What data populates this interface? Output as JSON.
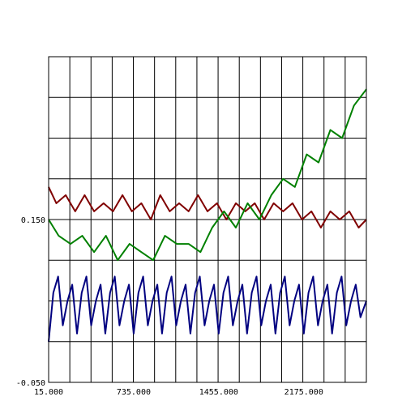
{
  "chart_data": {
    "type": "line",
    "title": "",
    "xlabel": "",
    "ylabel": "",
    "xlim": [
      15,
      2705
    ],
    "ylim": [
      -0.05,
      0.35
    ],
    "x_ticks": [
      15,
      735,
      1455,
      2175
    ],
    "x_tick_labels": [
      "15.000",
      "735.000",
      "1455.000",
      "2175.000"
    ],
    "y_ticks": [
      -0.05,
      0.15
    ],
    "y_tick_labels": [
      "-0.050",
      "0.150"
    ],
    "grid": true,
    "legend": "none",
    "series": [
      {
        "color": "#800000",
        "x": [
          15,
          80,
          160,
          240,
          320,
          400,
          480,
          560,
          640,
          720,
          800,
          880,
          960,
          1040,
          1120,
          1200,
          1280,
          1360,
          1440,
          1520,
          1600,
          1680,
          1760,
          1840,
          1920,
          2000,
          2080,
          2160,
          2240,
          2320,
          2400,
          2480,
          2560,
          2640,
          2705
        ],
        "y": [
          0.19,
          0.17,
          0.18,
          0.16,
          0.18,
          0.16,
          0.17,
          0.16,
          0.18,
          0.16,
          0.17,
          0.15,
          0.18,
          0.16,
          0.17,
          0.16,
          0.18,
          0.16,
          0.17,
          0.15,
          0.17,
          0.16,
          0.17,
          0.15,
          0.17,
          0.16,
          0.17,
          0.15,
          0.16,
          0.14,
          0.16,
          0.15,
          0.16,
          0.14,
          0.15
        ]
      },
      {
        "color": "#008000",
        "x": [
          15,
          100,
          200,
          300,
          400,
          500,
          600,
          700,
          800,
          900,
          1000,
          1100,
          1200,
          1300,
          1400,
          1500,
          1600,
          1700,
          1800,
          1900,
          2000,
          2100,
          2200,
          2300,
          2400,
          2500,
          2600,
          2705
        ],
        "y": [
          0.15,
          0.13,
          0.12,
          0.13,
          0.11,
          0.13,
          0.1,
          0.12,
          0.11,
          0.1,
          0.13,
          0.12,
          0.12,
          0.11,
          0.14,
          0.16,
          0.14,
          0.17,
          0.15,
          0.18,
          0.2,
          0.19,
          0.23,
          0.22,
          0.26,
          0.25,
          0.29,
          0.31
        ]
      },
      {
        "color": "#000080",
        "x": [
          15,
          55,
          95,
          135,
          175,
          215,
          255,
          295,
          335,
          375,
          415,
          455,
          495,
          535,
          575,
          615,
          655,
          695,
          735,
          775,
          815,
          855,
          895,
          935,
          975,
          1015,
          1055,
          1095,
          1135,
          1175,
          1215,
          1255,
          1295,
          1335,
          1375,
          1415,
          1455,
          1495,
          1535,
          1575,
          1615,
          1655,
          1695,
          1735,
          1775,
          1815,
          1855,
          1895,
          1935,
          1975,
          2015,
          2055,
          2095,
          2135,
          2175,
          2215,
          2255,
          2295,
          2335,
          2375,
          2415,
          2455,
          2495,
          2535,
          2575,
          2615,
          2655,
          2705
        ],
        "y": [
          0.0,
          0.06,
          0.08,
          0.02,
          0.05,
          0.07,
          0.01,
          0.06,
          0.08,
          0.02,
          0.05,
          0.07,
          0.01,
          0.06,
          0.08,
          0.02,
          0.05,
          0.07,
          0.01,
          0.06,
          0.08,
          0.02,
          0.05,
          0.07,
          0.01,
          0.06,
          0.08,
          0.02,
          0.05,
          0.07,
          0.01,
          0.06,
          0.08,
          0.02,
          0.05,
          0.07,
          0.01,
          0.06,
          0.08,
          0.02,
          0.05,
          0.07,
          0.01,
          0.06,
          0.08,
          0.02,
          0.05,
          0.07,
          0.01,
          0.06,
          0.08,
          0.02,
          0.05,
          0.07,
          0.01,
          0.06,
          0.08,
          0.02,
          0.05,
          0.07,
          0.01,
          0.06,
          0.08,
          0.02,
          0.05,
          0.07,
          0.03,
          0.05
        ]
      }
    ]
  }
}
